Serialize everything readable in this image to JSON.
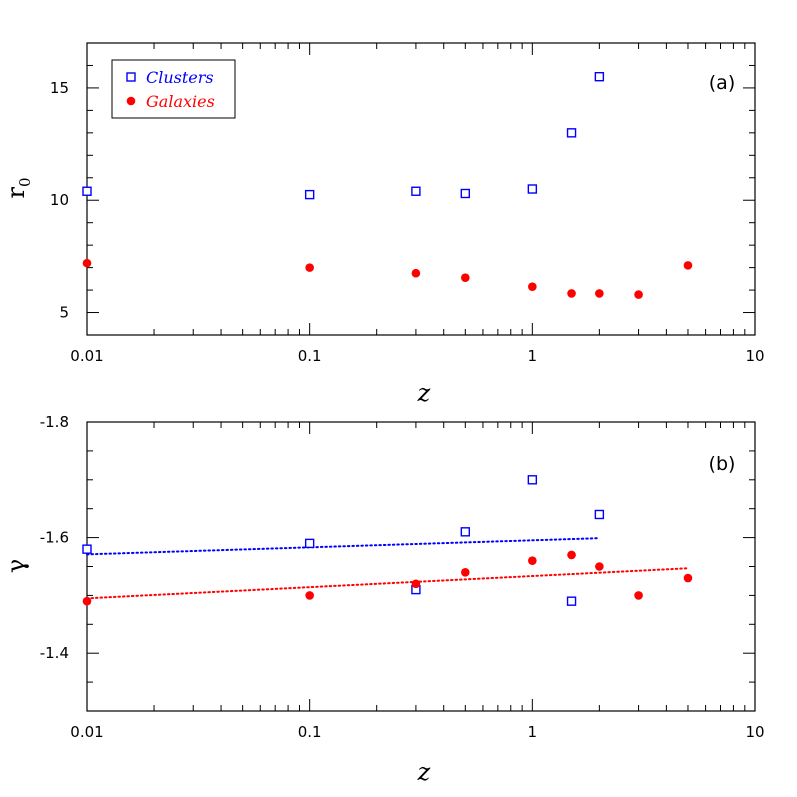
{
  "chart_data": [
    {
      "type": "scatter",
      "panel_label": "(a)",
      "xlabel": "z",
      "ylabel": "r",
      "ylabel_subscript": "0",
      "xscale": "log",
      "xlim": [
        0.01,
        10
      ],
      "ylim": [
        4,
        17
      ],
      "xticks": [
        0.01,
        0.1,
        1,
        10
      ],
      "xtick_labels": [
        "0.01",
        "0.1",
        "1",
        "10"
      ],
      "yticks": [
        5,
        10,
        15
      ],
      "ytick_labels": [
        "5",
        "10",
        "15"
      ],
      "legend": {
        "placement": "top-left",
        "entries": [
          {
            "label": "Clusters",
            "color": "#0000ff",
            "marker": "open-square"
          },
          {
            "label": "Galaxies",
            "color": "#ff0000",
            "marker": "filled-circle"
          }
        ]
      },
      "series": [
        {
          "name": "Clusters",
          "color": "#0000ff",
          "marker": "open-square",
          "x": [
            0.01,
            0.1,
            0.3,
            0.5,
            1,
            1.5,
            2
          ],
          "y": [
            10.4,
            10.25,
            10.4,
            10.3,
            10.5,
            13,
            15.5
          ]
        },
        {
          "name": "Galaxies",
          "color": "#ff0000",
          "marker": "filled-circle",
          "x": [
            0.01,
            0.1,
            0.3,
            0.5,
            1,
            1.5,
            2,
            3,
            5
          ],
          "y": [
            7.2,
            7.0,
            6.75,
            6.55,
            6.15,
            5.85,
            5.85,
            5.8,
            7.1
          ]
        }
      ]
    },
    {
      "type": "scatter",
      "panel_label": "(b)",
      "xlabel": "z",
      "ylabel": "γ",
      "xscale": "log",
      "xlim": [
        0.01,
        10
      ],
      "ylim": [
        -1.3,
        -1.8
      ],
      "xticks": [
        0.01,
        0.1,
        1,
        10
      ],
      "xtick_labels": [
        "0.01",
        "0.1",
        "1",
        "10"
      ],
      "yticks": [
        -1.4,
        -1.6,
        -1.8
      ],
      "ytick_labels": [
        "-1.4",
        "-1.6",
        "-1.8"
      ],
      "series": [
        {
          "name": "Clusters",
          "color": "#0000ff",
          "marker": "open-square",
          "x": [
            0.01,
            0.1,
            0.3,
            0.5,
            1,
            1.5,
            2
          ],
          "y": [
            -1.58,
            -1.59,
            -1.51,
            -1.61,
            -1.7,
            -1.49,
            -1.64
          ],
          "fit": {
            "x": [
              0.01,
              2
            ],
            "y": [
              -1.571,
              -1.599
            ],
            "style": "dotted"
          }
        },
        {
          "name": "Galaxies",
          "color": "#ff0000",
          "marker": "filled-circle",
          "x": [
            0.01,
            0.1,
            0.3,
            0.5,
            1,
            1.5,
            2,
            3,
            5
          ],
          "y": [
            -1.49,
            -1.5,
            -1.52,
            -1.54,
            -1.56,
            -1.57,
            -1.55,
            -1.5,
            -1.53
          ],
          "fit": {
            "x": [
              0.01,
              5
            ],
            "y": [
              -1.495,
              -1.547
            ],
            "style": "dotted"
          }
        }
      ]
    }
  ]
}
